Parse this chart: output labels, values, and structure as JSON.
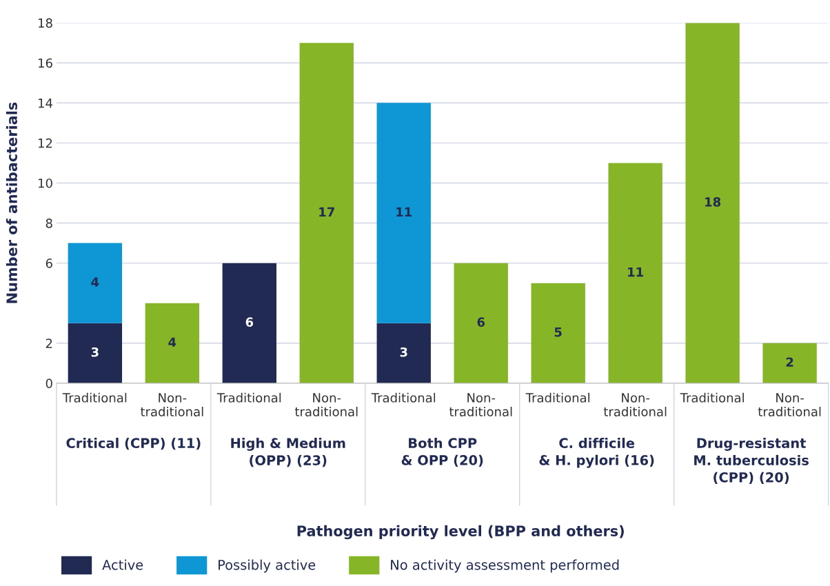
{
  "chart_data": {
    "type": "bar",
    "stacked": true,
    "categories": [
      "Traditional",
      "Non-traditional",
      "Traditional",
      "Non-traditional",
      "Traditional",
      "Non-traditional",
      "Traditional",
      "Non-traditional",
      "Traditional",
      "Non-traditional"
    ],
    "series": [
      {
        "name": "Active",
        "color": "#212a52",
        "values": [
          3,
          null,
          6,
          null,
          3,
          null,
          null,
          null,
          null,
          null
        ]
      },
      {
        "name": "Possibly active",
        "color": "#0f96d4",
        "values": [
          4,
          null,
          null,
          null,
          11,
          null,
          null,
          null,
          null,
          null
        ]
      },
      {
        "name": "No activity assessment performed",
        "color": "#86b628",
        "values": [
          null,
          4,
          null,
          17,
          null,
          6,
          5,
          11,
          18,
          2
        ]
      }
    ],
    "ylim": [
      0,
      18
    ],
    "yticks": [
      0,
      2,
      6,
      8,
      10,
      12,
      14,
      16,
      18
    ],
    "grid": "y",
    "data_labels": true,
    "legend": "bottom left",
    "ylabel": "Number of antibacterials",
    "annotations": [
      "Critical (CPP) (11)",
      "High & Medium\n(OPP) (23)",
      "Both CPP\n& OPP (20)",
      "C. difficile\n& H. pylori (16)",
      "Drug-resistant\nM. tuberculosis\n(CPP) (20)",
      "Pathogen priority level (BPP and others)"
    ]
  }
}
